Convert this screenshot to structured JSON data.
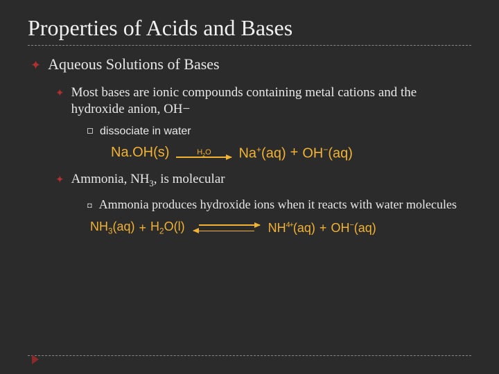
{
  "colors": {
    "background": "#2b2b2b",
    "text": "#e8e8e8",
    "accent_bullet": "#b03030",
    "equation": "#f2b233",
    "dashed_rule": "#888888"
  },
  "typography": {
    "title_fontsize_pt": 32,
    "body_font": "Times New Roman",
    "equation_font": "Arial"
  },
  "title": "Properties of Acids and Bases",
  "lvl1_1": "Aqueous Solutions of Bases",
  "lvl2_1a": "Most bases are ionic compounds containing metal cations and the hydroxide anion, OH−",
  "lvl3_1": "dissociate in water",
  "eq1": {
    "lhs_compound": "Na.OH",
    "lhs_state": "(s)",
    "arrow_label_a": "H",
    "arrow_label_sub": "2",
    "arrow_label_b": "O",
    "rhs_1": "Na",
    "rhs_1_sup": "+",
    "rhs_1_state": "(aq)",
    "plus": "+",
    "rhs_2": "OH",
    "rhs_2_sup": "−",
    "rhs_2_state": "(aq)"
  },
  "lvl2_2a": "Ammonia, NH",
  "lvl2_2_sub": "3",
  "lvl2_2b": ", is molecular",
  "lvl3_2": "Ammonia produces hydroxide ions when it reacts with water molecules",
  "eq2": {
    "l1": "NH",
    "l1_sub": "3",
    "l1_state": "(aq)",
    "plus": "+",
    "l2": "H",
    "l2_sub": "2",
    "l2b": "O",
    "l2_state": "(l)",
    "r1": "NH",
    "r1_sub": "4",
    "r1_sup": "+",
    "r1_state": "(aq)",
    "r2": "OH",
    "r2_sup": "−",
    "r2_state": "(aq)"
  }
}
